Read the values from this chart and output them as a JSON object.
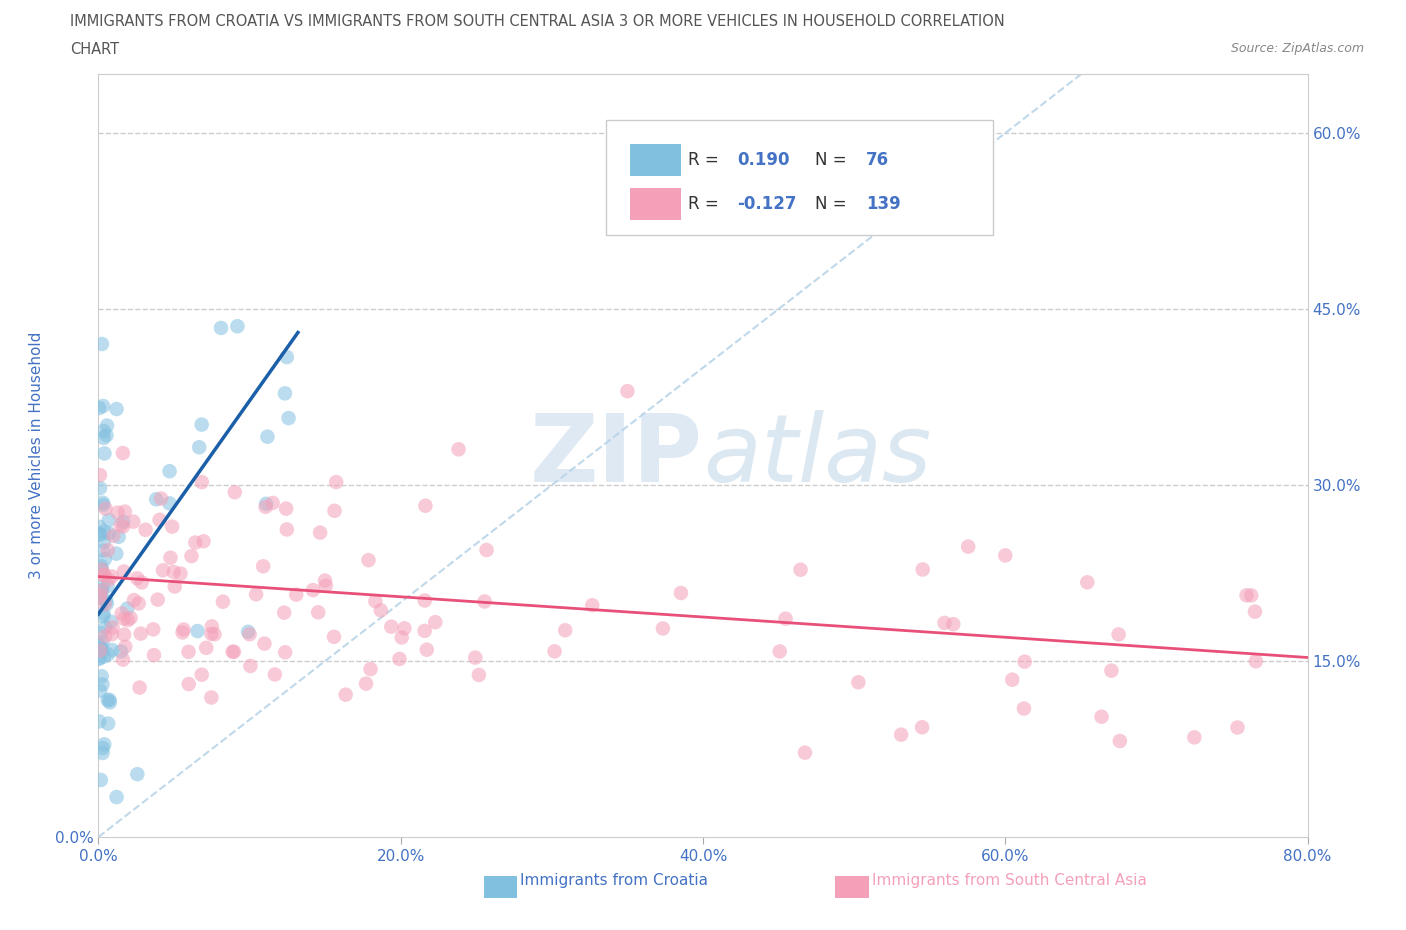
{
  "title_line1": "IMMIGRANTS FROM CROATIA VS IMMIGRANTS FROM SOUTH CENTRAL ASIA 3 OR MORE VEHICLES IN HOUSEHOLD CORRELATION",
  "title_line2": "CHART",
  "source": "Source: ZipAtlas.com",
  "xlabel_croatia": "Immigrants from Croatia",
  "xlabel_sca": "Immigrants from South Central Asia",
  "ylabel": "3 or more Vehicles in Household",
  "xlim": [
    0.0,
    0.8
  ],
  "ylim": [
    0.0,
    0.65
  ],
  "xticks": [
    0.0,
    0.2,
    0.4,
    0.6,
    0.8
  ],
  "xticklabels": [
    "0.0%",
    "20.0%",
    "40.0%",
    "60.0%",
    "80.0%"
  ],
  "yticks_left": [
    0.0
  ],
  "yticklabels_left": [
    "0.0%"
  ],
  "yticks_right": [
    0.15,
    0.3,
    0.45,
    0.6
  ],
  "yticklabels_right": [
    "15.0%",
    "30.0%",
    "45.0%",
    "60.0%"
  ],
  "croatia_color": "#82c0e0",
  "sca_color": "#f4a0b8",
  "croatia_line_color": "#1a5fa8",
  "sca_line_color": "#e8507a",
  "diagonal_color": "#b8d4e8",
  "R_croatia": 0.19,
  "N_croatia": 76,
  "R_sca": -0.127,
  "N_sca": 139,
  "watermark_zip": "ZIP",
  "watermark_atlas": "atlas",
  "background_color": "#ffffff",
  "grid_color": "#cccccc",
  "title_color": "#555555",
  "axis_label_color": "#4472c4",
  "legend_R_color": "#4472c4",
  "legend_N_color": "#4472c4",
  "croatia_trend_x": [
    0.0,
    0.132
  ],
  "croatia_trend_y": [
    0.19,
    0.43
  ],
  "sca_trend_x": [
    0.0,
    0.8
  ],
  "sca_trend_y": [
    0.222,
    0.153
  ]
}
